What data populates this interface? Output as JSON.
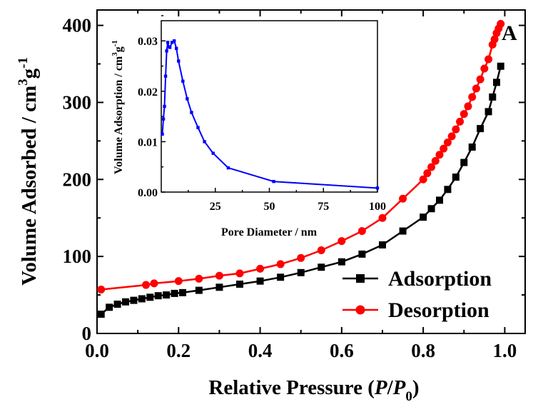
{
  "chart_data": [
    {
      "type": "line",
      "panel_label": "A",
      "xlabel": {
        "pre": "Relative Pressure (",
        "p": "P",
        "slash": "/",
        "p0": "P",
        "sub0": "0",
        "post": ")"
      },
      "ylabel": {
        "main": "Volume Adsorbed / cm",
        "sup3": "3",
        "g": "g",
        "supm1": "-1"
      },
      "xlim": [
        0.0,
        1.05
      ],
      "ylim": [
        0,
        420
      ],
      "xticks": [
        0.0,
        0.2,
        0.4,
        0.6,
        0.8,
        1.0
      ],
      "xtick_labels": [
        "0.0",
        "0.2",
        "0.4",
        "0.6",
        "0.8",
        "1.0"
      ],
      "yticks": [
        0,
        100,
        200,
        300,
        400
      ],
      "ytick_labels": [
        "0",
        "100",
        "200",
        "300",
        "400"
      ],
      "legend_position": "bottom-right",
      "series": [
        {
          "name": "Adsorption",
          "color": "#000000",
          "marker": "square",
          "x": [
            0.01,
            0.03,
            0.05,
            0.07,
            0.09,
            0.11,
            0.13,
            0.15,
            0.17,
            0.19,
            0.21,
            0.25,
            0.3,
            0.35,
            0.4,
            0.45,
            0.5,
            0.55,
            0.6,
            0.65,
            0.7,
            0.75,
            0.8,
            0.82,
            0.84,
            0.86,
            0.88,
            0.9,
            0.92,
            0.94,
            0.96,
            0.97,
            0.98,
            0.99
          ],
          "y": [
            25,
            34,
            38,
            41,
            43,
            45,
            47,
            49,
            50,
            52,
            53,
            56,
            60,
            64,
            68,
            73,
            79,
            86,
            93,
            103,
            115,
            133,
            151,
            162,
            173,
            187,
            203,
            222,
            242,
            266,
            288,
            307,
            326,
            347
          ]
        },
        {
          "name": "Desorption",
          "color": "#ff0000",
          "marker": "circle",
          "x": [
            0.99,
            0.985,
            0.98,
            0.975,
            0.97,
            0.96,
            0.95,
            0.94,
            0.93,
            0.92,
            0.91,
            0.9,
            0.89,
            0.88,
            0.87,
            0.86,
            0.85,
            0.84,
            0.83,
            0.82,
            0.81,
            0.8,
            0.75,
            0.7,
            0.65,
            0.6,
            0.55,
            0.5,
            0.45,
            0.4,
            0.35,
            0.3,
            0.25,
            0.2,
            0.14,
            0.12,
            0.01
          ],
          "y": [
            402,
            396,
            390,
            382,
            375,
            356,
            344,
            330,
            318,
            307,
            295,
            285,
            275,
            265,
            256,
            248,
            240,
            232,
            224,
            216,
            208,
            200,
            175,
            150,
            133,
            120,
            108,
            98,
            90,
            84,
            78,
            75,
            71,
            68,
            65,
            63,
            57
          ]
        }
      ]
    },
    {
      "type": "line",
      "xlabel": "Pore Diameter / nm",
      "ylabel": "Volume Adsorption  / cm",
      "ylabel_sup3": "3",
      "ylabel_g": "g",
      "ylabel_supm1": "-1",
      "xlim": [
        0,
        100
      ],
      "ylim": [
        0.0,
        0.034
      ],
      "xticks": [
        25,
        50,
        75,
        100
      ],
      "xtick_labels": [
        "25",
        "50",
        "75",
        "100"
      ],
      "yticks": [
        0.0,
        0.01,
        0.02,
        0.03
      ],
      "ytick_labels": [
        "0.00",
        "0.01",
        "0.02",
        "0.03"
      ],
      "series": [
        {
          "color": "#0000ff",
          "marker": "square",
          "x": [
            0.5,
            1,
            1.5,
            2,
            2.5,
            3,
            3.5,
            4,
            5,
            6,
            7,
            8,
            10,
            12,
            14,
            17,
            20,
            24,
            31,
            52,
            100
          ],
          "y": [
            0.0115,
            0.0145,
            0.017,
            0.023,
            0.028,
            0.0297,
            0.0288,
            0.0287,
            0.0297,
            0.03,
            0.0285,
            0.026,
            0.022,
            0.0185,
            0.0158,
            0.0128,
            0.01,
            0.0077,
            0.0048,
            0.0021,
            0.0008
          ]
        }
      ]
    }
  ]
}
